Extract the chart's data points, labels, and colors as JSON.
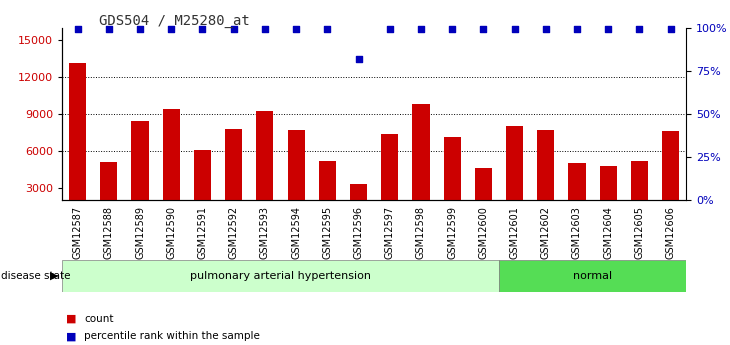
{
  "title": "GDS504 / M25280_at",
  "categories": [
    "GSM12587",
    "GSM12588",
    "GSM12589",
    "GSM12590",
    "GSM12591",
    "GSM12592",
    "GSM12593",
    "GSM12594",
    "GSM12595",
    "GSM12596",
    "GSM12597",
    "GSM12598",
    "GSM12599",
    "GSM12600",
    "GSM12601",
    "GSM12602",
    "GSM12603",
    "GSM12604",
    "GSM12605",
    "GSM12606"
  ],
  "counts": [
    13100,
    5100,
    8400,
    9400,
    6050,
    7800,
    9200,
    7700,
    5150,
    3300,
    7400,
    9800,
    7150,
    4600,
    8000,
    7700,
    5050,
    4800,
    5200,
    7600
  ],
  "percentiles": [
    99,
    99,
    99,
    99,
    99,
    99,
    99,
    99,
    99,
    82,
    99,
    99,
    99,
    99,
    99,
    99,
    99,
    99,
    99,
    99
  ],
  "ylim_left": [
    2000,
    16000
  ],
  "yticks_left": [
    3000,
    6000,
    9000,
    12000,
    15000
  ],
  "ylim_right": [
    0,
    100
  ],
  "yticks_right": [
    0,
    25,
    50,
    75,
    100
  ],
  "ytick_labels_right": [
    "0%",
    "25%",
    "50%",
    "75%",
    "100%"
  ],
  "bar_color": "#cc0000",
  "dot_color": "#0000bb",
  "background_color": "#ffffff",
  "plot_bg_color": "#ffffff",
  "group1_label": "pulmonary arterial hypertension",
  "group2_label": "normal",
  "group1_color": "#ccffcc",
  "group2_color": "#55dd55",
  "group1_count": 14,
  "group2_count": 6,
  "disease_state_label": "disease state",
  "legend_count_label": "count",
  "legend_pct_label": "percentile rank within the sample",
  "grid_levels": [
    6000,
    9000,
    12000
  ],
  "title_color": "#333333",
  "title_fontsize": 10,
  "bar_width": 0.55
}
